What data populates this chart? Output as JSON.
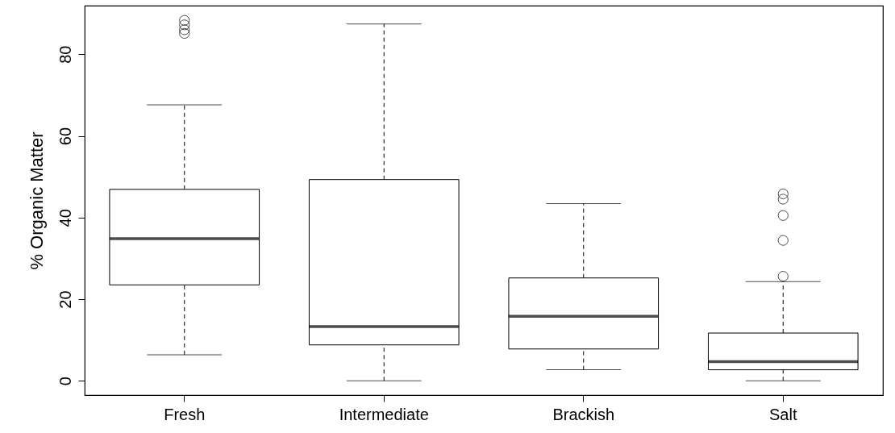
{
  "chart_data": {
    "type": "box",
    "ylabel": "% Organic Matter",
    "categories": [
      "Fresh",
      "Intermediate",
      "Brackish",
      "Salt"
    ],
    "boxes": [
      {
        "low": 6.4,
        "q1": 23.5,
        "median": 34.8,
        "q3": 46.9,
        "high": 67.6,
        "outliers": [
          85.1,
          86.0,
          87.2,
          88.3
        ]
      },
      {
        "low": 0,
        "q1": 8.8,
        "median": 13.3,
        "q3": 49.3,
        "high": 87.4
      },
      {
        "low": 2.7,
        "q1": 7.8,
        "median": 15.8,
        "q3": 25.2,
        "high": 43.4
      },
      {
        "low": 0,
        "q1": 2.7,
        "median": 4.7,
        "q3": 11.7,
        "high": 24.3,
        "outliers": [
          25.6,
          34.4,
          40.5,
          44.5,
          45.8
        ]
      }
    ],
    "ylim": [
      -3.5,
      91.9
    ],
    "yticks": [
      0,
      20,
      40,
      60,
      80
    ]
  }
}
